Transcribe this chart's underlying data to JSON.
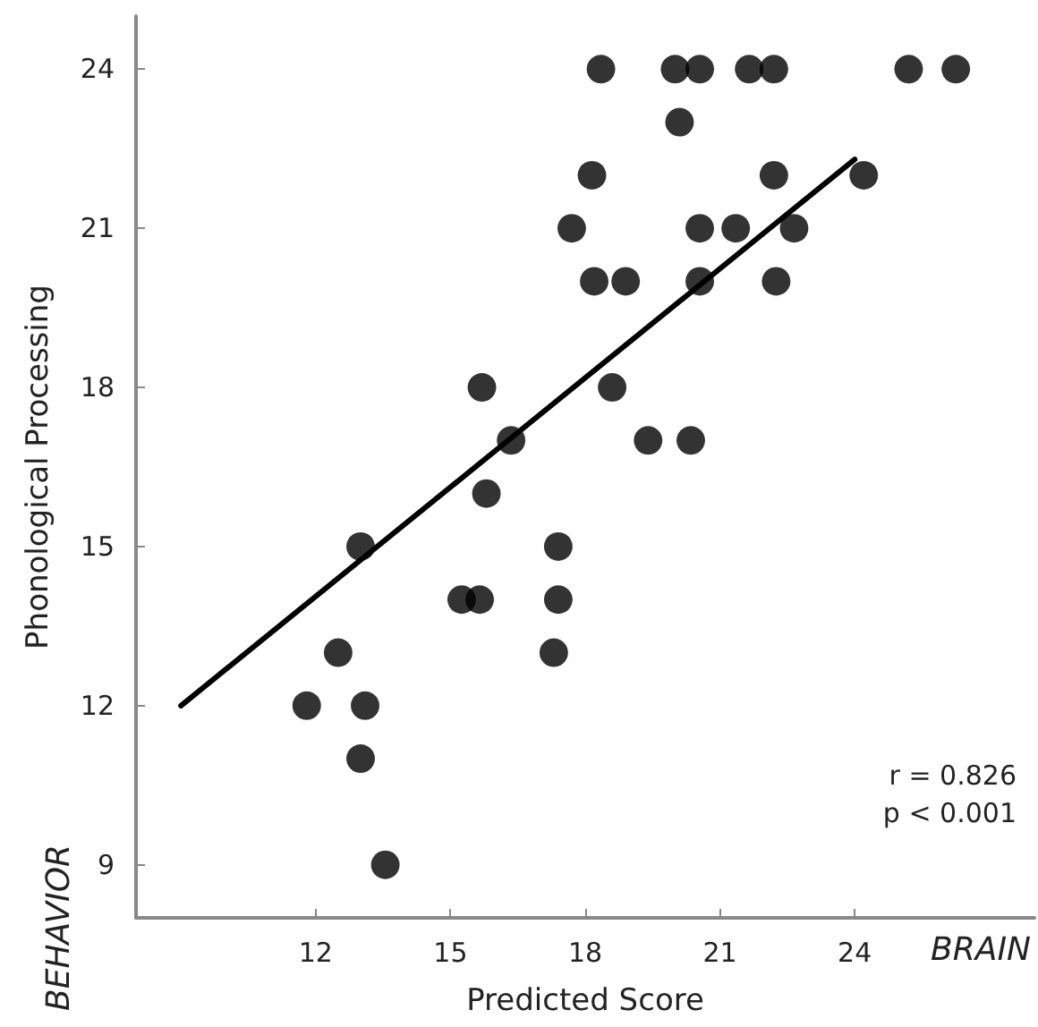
{
  "chart_data": {
    "type": "scatter",
    "xlabel": "Predicted Score",
    "ylabel": "Phonological Processing",
    "annotations": [
      "r = 0.826",
      "p < 0.001",
      "BEHAVIOR",
      "BRAIN"
    ],
    "xlim": [
      8,
      28
    ],
    "ylim": [
      8,
      25
    ],
    "xticks": [
      12,
      15,
      18,
      21,
      24
    ],
    "yticks": [
      9,
      12,
      15,
      18,
      21,
      24
    ],
    "grid": false,
    "series": [
      {
        "color": "#000000",
        "marker": "circle",
        "x": [
          18.35,
          20.0,
          20.55,
          21.65,
          22.2,
          25.2,
          26.25,
          20.1,
          18.15,
          22.2,
          24.2,
          17.7,
          20.55,
          21.35,
          22.65,
          18.2,
          18.9,
          20.55,
          22.25,
          18.6,
          15.7,
          19.4,
          20.35,
          16.35,
          15.8,
          13.0,
          17.4,
          15.25,
          15.65,
          17.4,
          12.5,
          17.3,
          11.8,
          13.1,
          13.0,
          13.55
        ],
        "values": [
          24,
          24,
          24,
          24,
          24,
          24,
          24,
          23,
          22,
          22,
          22,
          21,
          21,
          21,
          21,
          20,
          20,
          20,
          20,
          18,
          18,
          17,
          17,
          17,
          16,
          15,
          15,
          14,
          14,
          14,
          13,
          13,
          12,
          12,
          11,
          9
        ]
      },
      {
        "type": "line",
        "color": "#000000",
        "marker": "none",
        "line_style": "solid",
        "x": [
          9.0,
          24.0
        ],
        "values": [
          12,
          22.3
        ]
      }
    ]
  }
}
